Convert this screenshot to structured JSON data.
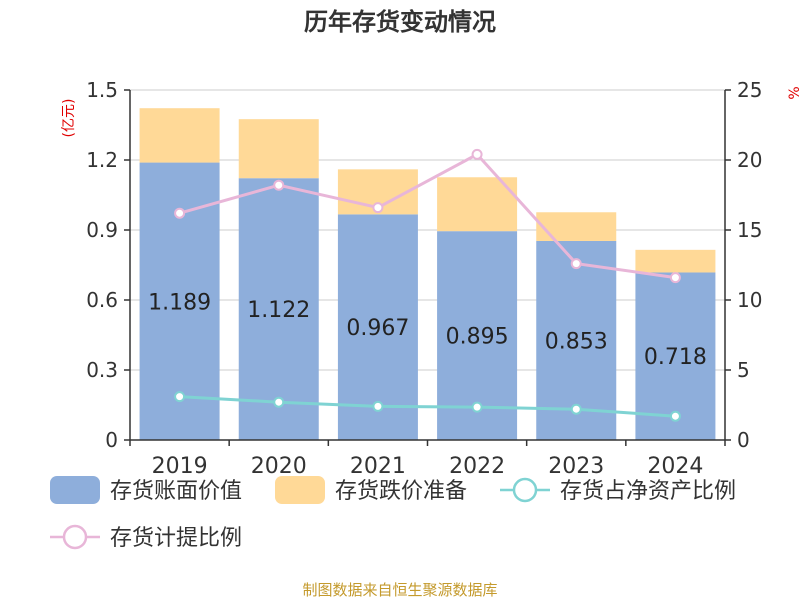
{
  "chart_data": {
    "type": "bar",
    "title": "历年存货变动情况",
    "categories": [
      "2019",
      "2020",
      "2021",
      "2022",
      "2023",
      "2024"
    ],
    "series": [
      {
        "name": "存货账面价值",
        "kind": "bar",
        "axis": "left",
        "stack": "inv",
        "color": "#8eaedb",
        "values": [
          1.189,
          1.122,
          0.967,
          0.895,
          0.853,
          0.718
        ],
        "labels": [
          "1.189",
          "1.122",
          "0.967",
          "0.895",
          "0.853",
          "0.718"
        ]
      },
      {
        "name": "存货跌价准备",
        "kind": "bar",
        "axis": "left",
        "stack": "inv",
        "color": "#ffd997",
        "values": [
          0.233,
          0.253,
          0.193,
          0.231,
          0.123,
          0.097
        ]
      },
      {
        "name": "存货占净资产比例",
        "kind": "line",
        "axis": "right",
        "color": "#7fd3d3",
        "values": [
          3.1,
          2.7,
          2.4,
          2.35,
          2.2,
          1.7
        ]
      },
      {
        "name": "存货计提比例",
        "kind": "line",
        "axis": "right",
        "color": "#e8b6d8",
        "values": [
          16.2,
          18.2,
          16.6,
          20.4,
          12.6,
          11.6
        ]
      }
    ],
    "y_left": {
      "unit": "(亿元)",
      "ylim": [
        0,
        1.5
      ],
      "ticks": [
        "0",
        "0.3",
        "0.6",
        "0.9",
        "1.2",
        "1.5"
      ]
    },
    "y_right": {
      "unit": "%",
      "ylim": [
        0,
        25
      ],
      "ticks": [
        "0",
        "5",
        "10",
        "15",
        "20",
        "25"
      ]
    },
    "grid": true,
    "legend_position": "bottom"
  },
  "source": "制图数据来自恒生聚源数据库"
}
